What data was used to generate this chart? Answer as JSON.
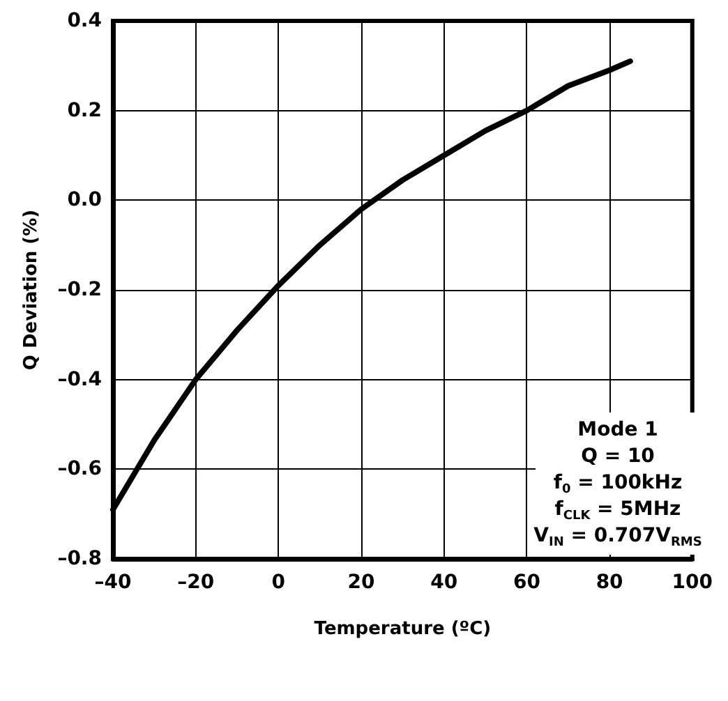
{
  "chart_data": {
    "type": "line",
    "xlabel": "Temperature (ºC)",
    "ylabel": "Q Deviation (%)",
    "x": [
      -40,
      -30,
      -20,
      -10,
      0,
      10,
      20,
      30,
      40,
      50,
      60,
      70,
      80,
      85
    ],
    "series": [
      {
        "color": "#000000",
        "values": [
          -0.69,
          -0.535,
          -0.4,
          -0.29,
          -0.19,
          -0.1,
          -0.02,
          0.045,
          0.1,
          0.155,
          0.2,
          0.255,
          0.29,
          0.31
        ]
      }
    ],
    "xlim": [
      -40,
      100
    ],
    "ylim": [
      -0.8,
      0.4
    ],
    "xticks": [
      {
        "value": -40,
        "label": "–40"
      },
      {
        "value": -20,
        "label": "–20"
      },
      0,
      20,
      40,
      60,
      80,
      100
    ],
    "yticks": [
      {
        "value": -0.8,
        "label": "–0.8"
      },
      {
        "value": -0.6,
        "label": "–0.6"
      },
      {
        "value": -0.4,
        "label": "–0.4"
      },
      {
        "value": -0.2,
        "label": "–0.2"
      },
      {
        "value": 0,
        "label": "0.0"
      },
      0.2,
      0.4
    ],
    "grid": true,
    "marker": "none",
    "line_style": "solid",
    "annotations": [
      "Mode 1",
      "Q = 10",
      "f$_{0}$ = 100kHz",
      "f$_{CLK}$ = 5MHz",
      "V$_{IN}$ = 0.707V$_{RMS}$"
    ]
  }
}
